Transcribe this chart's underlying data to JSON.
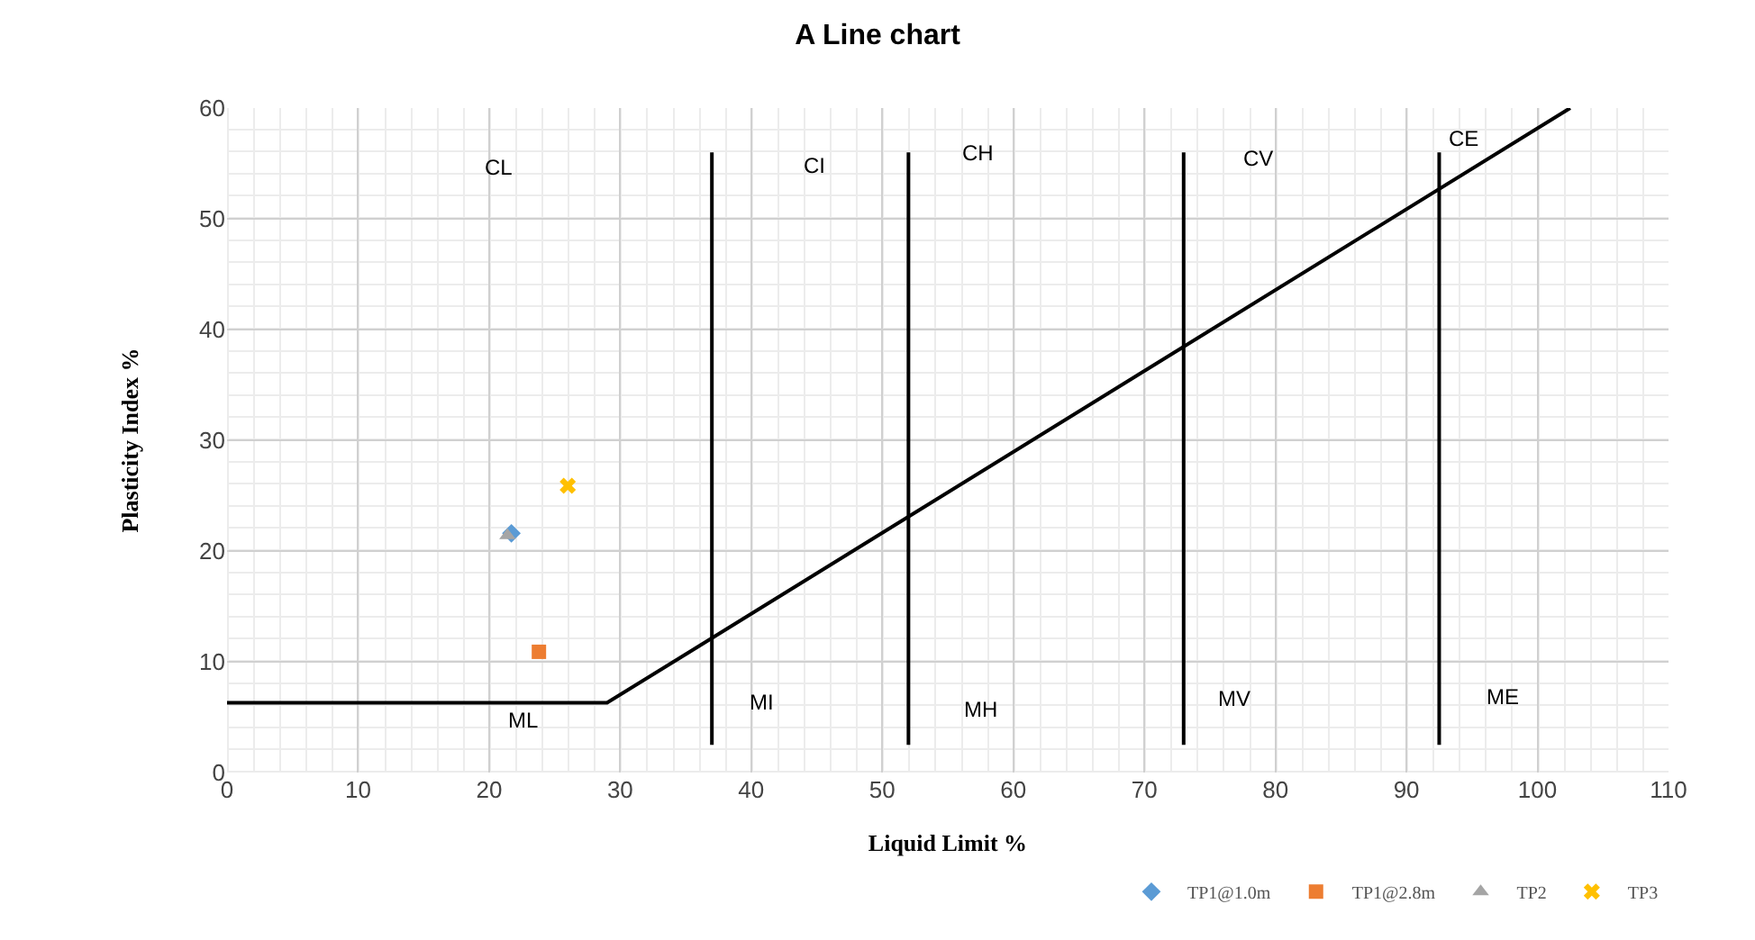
{
  "chart_data": {
    "type": "scatter",
    "title": "A Line chart",
    "xlabel": "Liquid Limit %",
    "ylabel": "Plasticity Index %",
    "xlim": [
      0,
      110
    ],
    "xticks": [
      0,
      10,
      20,
      30,
      40,
      50,
      60,
      70,
      80,
      90,
      100,
      110
    ],
    "ylim": [
      0,
      60
    ],
    "yticks": [
      0,
      10,
      20,
      30,
      40,
      50,
      60
    ],
    "grid": true,
    "legend": "bottom right",
    "series": [
      {
        "type": "line",
        "color": "#000000",
        "marker": "none",
        "x": [
          0,
          29,
          102.5
        ],
        "values": [
          6.3,
          6.3,
          60
        ]
      },
      {
        "type": "line",
        "color": "#000000",
        "marker": "none",
        "x": [
          37,
          37
        ],
        "values": [
          2.5,
          56
        ]
      },
      {
        "type": "line",
        "color": "#000000",
        "marker": "none",
        "x": [
          52,
          52
        ],
        "values": [
          2.5,
          56
        ]
      },
      {
        "type": "line",
        "color": "#000000",
        "marker": "none",
        "x": [
          73,
          73
        ],
        "values": [
          2.5,
          56
        ]
      },
      {
        "type": "line",
        "color": "#000000",
        "marker": "none",
        "x": [
          92.5,
          92.5
        ],
        "values": [
          2.5,
          56
        ]
      },
      {
        "name": "TP1@1.0m",
        "color": "#5b9bd5",
        "marker": "diamond",
        "x": [
          21.7
        ],
        "values": [
          21.6
        ]
      },
      {
        "name": "TP1@2.8m",
        "color": "#ed7d31",
        "marker": "square",
        "x": [
          23.8
        ],
        "values": [
          10.9
        ]
      },
      {
        "name": "TP2",
        "color": "#a5a5a5",
        "marker": "triangle",
        "x": [
          21.4
        ],
        "values": [
          21.4
        ]
      },
      {
        "name": "TP3",
        "color": "#ffc000",
        "marker": "cross",
        "x": [
          26
        ],
        "values": [
          25.9
        ]
      }
    ],
    "annotations": [
      "CL",
      "CI",
      "CH",
      "CV",
      "CE",
      "ML",
      "MI",
      "MH",
      "MV",
      "ME"
    ]
  }
}
